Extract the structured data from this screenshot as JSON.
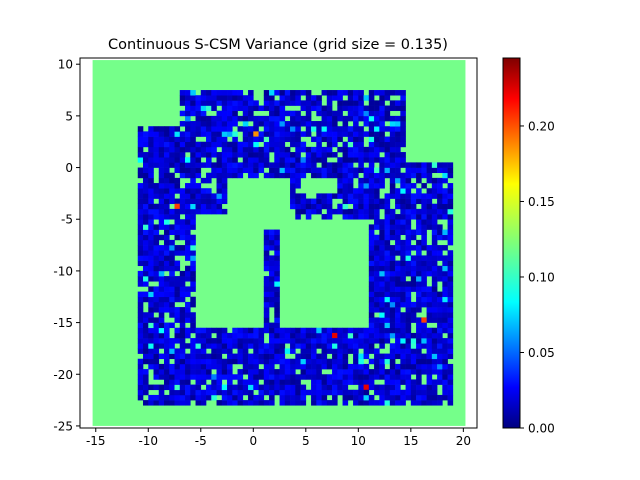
{
  "chart_data": {
    "type": "heatmap",
    "title": "Continuous S-CSM Variance (grid size = 0.135)",
    "xlabel": "",
    "ylabel": "",
    "xlim": [
      -16.5,
      21.3
    ],
    "ylim": [
      -25.2,
      10.6
    ],
    "xticks": [
      -15,
      -10,
      -5,
      0,
      5,
      10,
      15,
      20
    ],
    "yticks": [
      10,
      5,
      0,
      -5,
      -10,
      -15,
      -20,
      -25
    ],
    "grid_size": 0.135,
    "field_extent": {
      "x": [
        -15.3,
        20.2
      ],
      "y": [
        -25.0,
        10.4
      ]
    },
    "background_value": 0.12,
    "colormap": "jet",
    "colorbar": {
      "range": [
        0.0,
        0.245
      ],
      "ticks": [
        0.0,
        0.05,
        0.1,
        0.15,
        0.2
      ],
      "tick_labels": [
        "0.00",
        "0.05",
        "0.10",
        "0.15",
        "0.20"
      ]
    },
    "observed_region": {
      "typical_value": 0.01,
      "description_regions": [
        {
          "x": [
            -11.5,
            19.0
          ],
          "y": [
            -23.5,
            7.5
          ]
        }
      ],
      "notable_high_cells": [
        {
          "x": 10.5,
          "y": -21.5,
          "value": 0.22
        },
        {
          "x": 7.5,
          "y": -16.5,
          "value": 0.22
        },
        {
          "x": -7.5,
          "y": -4.0,
          "value": 0.2
        },
        {
          "x": 0.0,
          "y": 3.0,
          "value": 0.18
        },
        {
          "x": 16.0,
          "y": -15.0,
          "value": 0.2
        }
      ]
    },
    "grid": false,
    "legend": "none"
  }
}
